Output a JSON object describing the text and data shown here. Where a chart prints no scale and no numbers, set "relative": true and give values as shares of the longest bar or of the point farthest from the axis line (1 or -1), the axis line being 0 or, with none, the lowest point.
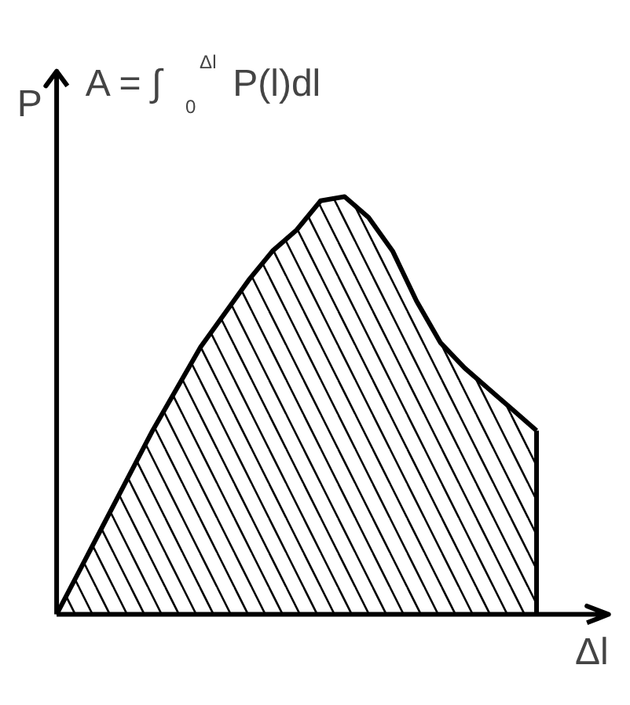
{
  "chart_data": {
    "type": "area",
    "relative": true,
    "xlabel": "Δl",
    "ylabel": "P",
    "annotations": [
      "A = ∫$_{0}$$^{Δl}$ P(l)dl"
    ],
    "categories": [
      null,
      null,
      null,
      null,
      null,
      null,
      null,
      null,
      null,
      null,
      null,
      null,
      null,
      null,
      null,
      null,
      null,
      null,
      null,
      null,
      null
    ],
    "series": [
      {
        "color": "#000000",
        "values": [
          0,
          0.11,
          0.22,
          0.33,
          0.44,
          0.54,
          0.64,
          0.72,
          0.8,
          0.87,
          0.92,
          0.99,
          1.0,
          0.95,
          0.87,
          0.75,
          0.65,
          0.59,
          0.54,
          0.49,
          0.44
        ]
      }
    ],
    "grid": false
  }
}
